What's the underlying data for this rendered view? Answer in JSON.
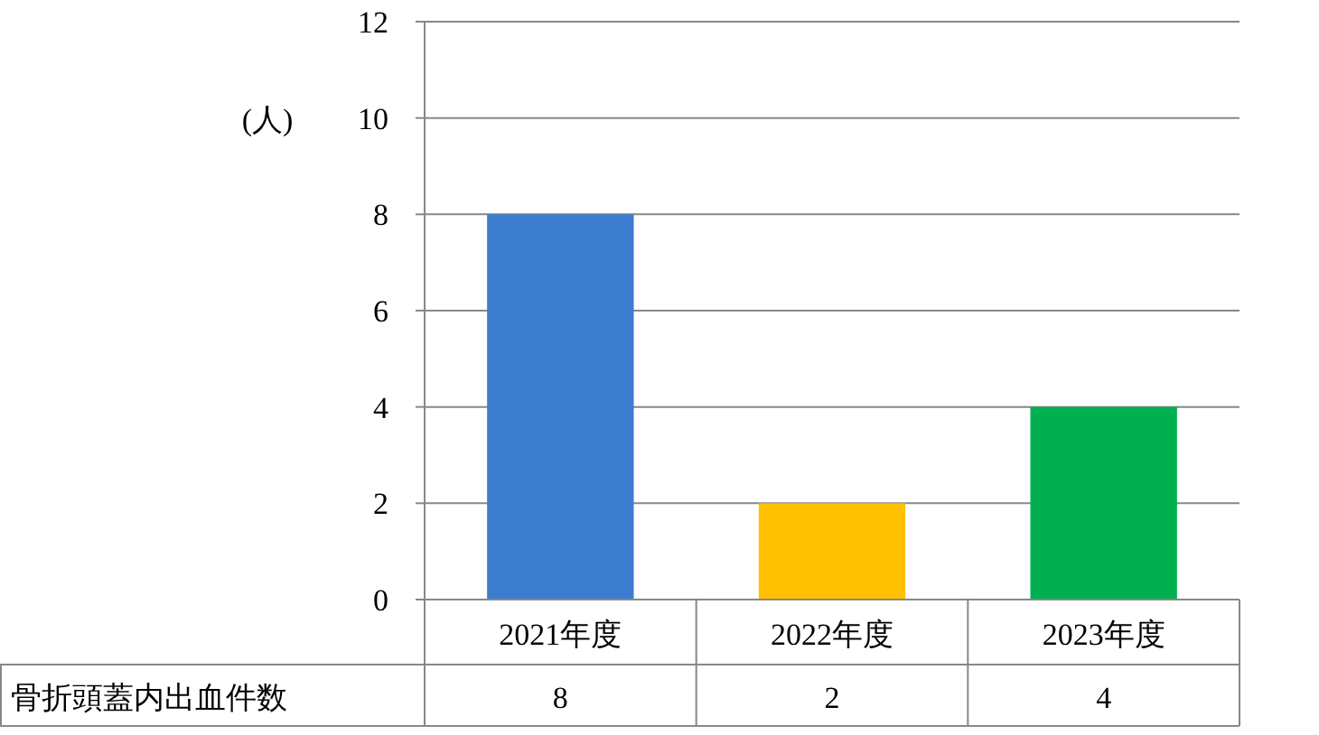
{
  "chart_data": {
    "type": "bar",
    "ylabel": "(人)",
    "categories": [
      "2021年度",
      "2022年度",
      "2023年度"
    ],
    "series": [
      {
        "name": "骨折頭蓋内出血件数",
        "colors": [
          "#3c7dd0",
          "#ffc000",
          "#00b050"
        ],
        "values": [
          8,
          2,
          4
        ]
      }
    ],
    "ylim": [
      0,
      12
    ],
    "yticks": [
      0,
      2,
      4,
      6,
      8,
      10,
      12
    ],
    "grid": "y",
    "data_labels": true
  }
}
